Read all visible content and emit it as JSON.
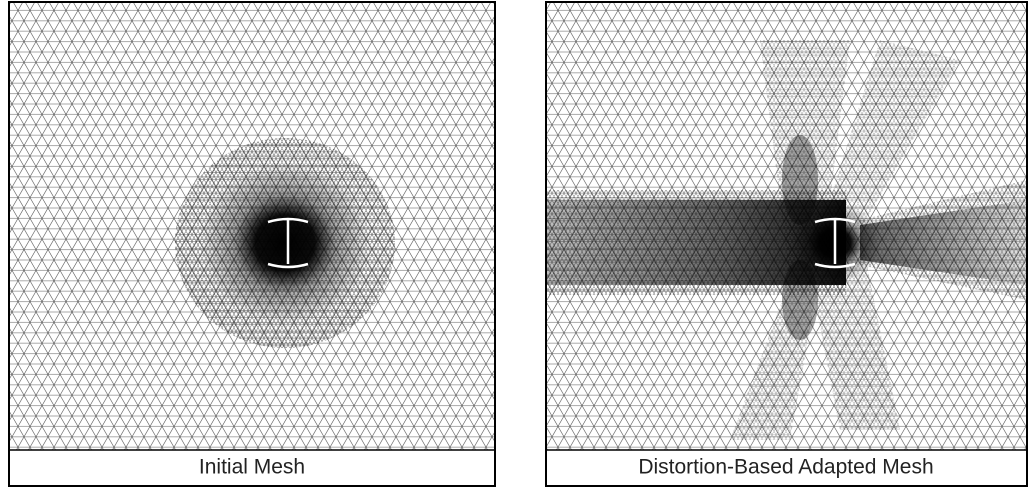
{
  "panels": [
    {
      "caption": "Initial Mesh"
    },
    {
      "caption": "Distortion-Based Adapted Mesh"
    }
  ]
}
